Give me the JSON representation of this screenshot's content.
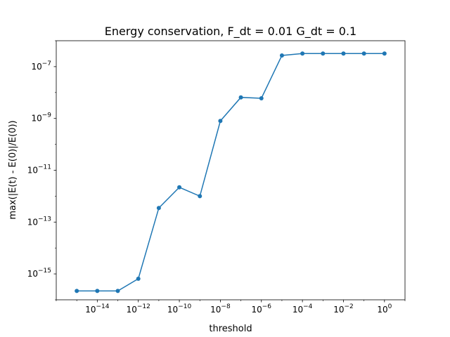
{
  "chart_data": {
    "type": "line",
    "title": "Energy conservation, F_dt = 0.01 G_dt = 0.1",
    "xlabel": "threshold",
    "ylabel": "max(|E(t) - E(0)|/E(0))",
    "xscale": "log",
    "yscale": "log",
    "xlim": [
      1e-16,
      10.0
    ],
    "ylim": [
      1e-16,
      1e-06
    ],
    "x_ticks": [
      {
        "base": "10",
        "exp": "−14",
        "value": 1e-14
      },
      {
        "base": "10",
        "exp": "−12",
        "value": 1e-12
      },
      {
        "base": "10",
        "exp": "−10",
        "value": 1e-10
      },
      {
        "base": "10",
        "exp": "−8",
        "value": 1e-08
      },
      {
        "base": "10",
        "exp": "−6",
        "value": 1e-06
      },
      {
        "base": "10",
        "exp": "−4",
        "value": 0.0001
      },
      {
        "base": "10",
        "exp": "−2",
        "value": 0.01
      },
      {
        "base": "10",
        "exp": "0",
        "value": 1
      }
    ],
    "y_ticks": [
      {
        "base": "10",
        "exp": "−15",
        "value": 1e-15
      },
      {
        "base": "10",
        "exp": "−13",
        "value": 1e-13
      },
      {
        "base": "10",
        "exp": "−11",
        "value": 1e-11
      },
      {
        "base": "10",
        "exp": "−9",
        "value": 1e-09
      },
      {
        "base": "10",
        "exp": "−7",
        "value": 1e-07
      }
    ],
    "grid": false,
    "series": [
      {
        "color": "#1f77b4",
        "marker": "circle",
        "x": [
          1e-15,
          1e-14,
          1e-13,
          1e-12,
          1e-11,
          1e-10,
          1e-09,
          1e-08,
          1e-07,
          1e-06,
          1e-05,
          0.0001,
          0.001,
          0.01,
          0.1,
          1
        ],
        "y": [
          2.2e-16,
          2.2e-16,
          2.2e-16,
          6.5e-16,
          3.5e-13,
          2.2e-12,
          1e-12,
          8e-10,
          6.5e-09,
          6e-09,
          2.7e-07,
          3.2e-07,
          3.2e-07,
          3.2e-07,
          3.2e-07,
          3.2e-07
        ]
      }
    ]
  }
}
